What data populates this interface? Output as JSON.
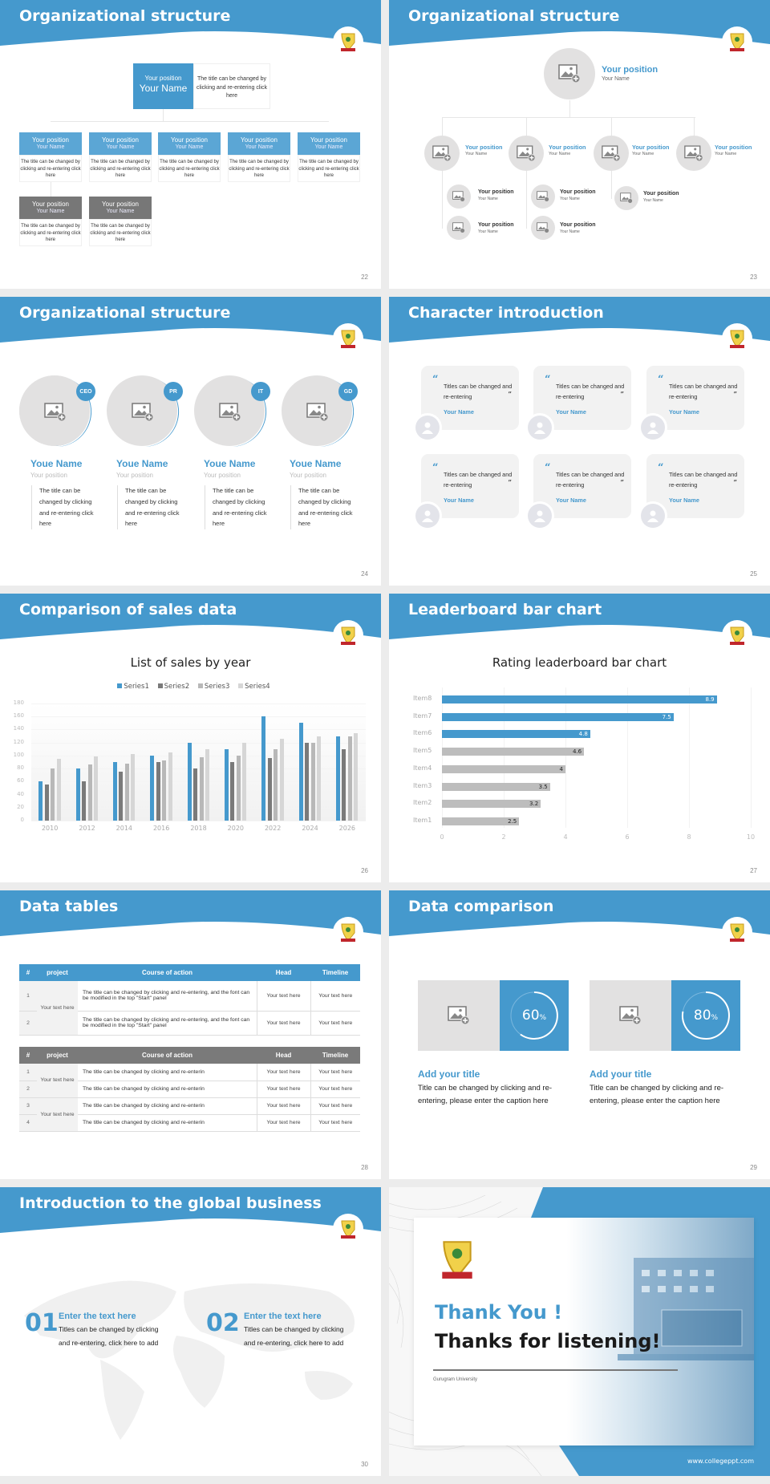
{
  "theme": {
    "accent": "#4599cd",
    "gray_dark": "#777777",
    "gray_light": "#e2e1e1",
    "background": "#ececec"
  },
  "slides": {
    "s22": {
      "title": "Organizational structure",
      "page": "22",
      "top": {
        "position": "Your position",
        "name": "Your Name",
        "desc": "The title can be changed by clicking and re-entering click here"
      },
      "cards": [
        {
          "position": "Your position",
          "name": "Your Name",
          "desc": "The title can be changed by clicking and re-entering click here",
          "style": "blue"
        },
        {
          "position": "Your position",
          "name": "Your Name",
          "desc": "The title can be changed by clicking and re-entering click here",
          "style": "blue"
        },
        {
          "position": "Your position",
          "name": "Your Name",
          "desc": "The title can be changed by clicking and re-entering click here",
          "style": "blue"
        },
        {
          "position": "Your position",
          "name": "Your Name",
          "desc": "The title can be changed by clicking and re-entering click here",
          "style": "blue"
        },
        {
          "position": "Your position",
          "name": "Your Name",
          "desc": "The title can be changed by clicking and re-entering click here",
          "style": "blue"
        },
        {
          "position": "Your position",
          "name": "Your Name",
          "desc": "The title can be changed by clicking and re-entering click here",
          "style": "gray"
        },
        {
          "position": "Your position",
          "name": "Your Name",
          "desc": "The title can be changed by clicking and re-entering click here",
          "style": "gray"
        }
      ]
    },
    "s23": {
      "title": "Organizational structure",
      "page": "23",
      "top": {
        "position": "Your position",
        "name": "Your Name"
      },
      "level1": [
        {
          "position": "Your position",
          "name": "Your Name"
        },
        {
          "position": "Your position",
          "name": "Your Name"
        },
        {
          "position": "Your position",
          "name": "Your Name"
        },
        {
          "position": "Your position",
          "name": "Your Name"
        }
      ],
      "level2": [
        {
          "position": "Your position",
          "name": "Your Name"
        },
        {
          "position": "Your position",
          "name": "Your Name"
        },
        {
          "position": "Your position",
          "name": "Your Name"
        },
        {
          "position": "Your position",
          "name": "Your Name"
        },
        {
          "position": "Your position",
          "name": "Your Name"
        }
      ]
    },
    "s24": {
      "title": "Organizational structure",
      "page": "24",
      "people": [
        {
          "badge": "CEO",
          "name": "Youe Name",
          "position": "Your position",
          "desc": "The title can be changed by clicking and re-entering click here"
        },
        {
          "badge": "PR",
          "name": "Youe Name",
          "position": "Your position",
          "desc": "The title can be changed by clicking and re-entering click here"
        },
        {
          "badge": "IT",
          "name": "Youe Name",
          "position": "Your position",
          "desc": "The title can be changed by clicking and re-entering click here"
        },
        {
          "badge": "GD",
          "name": "Youe Name",
          "position": "Your position",
          "desc": "The title can be changed by clicking and re-entering click here"
        }
      ]
    },
    "s25": {
      "title": "Character introduction",
      "page": "25",
      "quotes": [
        {
          "text": "Titles can be changed and re-entering",
          "name": "Your Name"
        },
        {
          "text": "Titles can be changed and re-entering",
          "name": "Your Name"
        },
        {
          "text": "Titles can be changed and re-entering",
          "name": "Your Name"
        },
        {
          "text": "Titles can be changed and re-entering",
          "name": "Your Name"
        },
        {
          "text": "Titles can be changed and re-entering",
          "name": "Your Name"
        },
        {
          "text": "Titles can be changed and re-entering",
          "name": "Your Name"
        }
      ],
      "open_quote": "“",
      "close_quote": "”"
    },
    "s26": {
      "title": "Comparison of sales data",
      "page": "26"
    },
    "s27": {
      "title": "Leaderboard bar chart",
      "page": "27"
    },
    "s28": {
      "title": "Data tables",
      "page": "28",
      "headers": [
        "#",
        "project",
        "Course of action",
        "Head",
        "Timeline"
      ],
      "table1": {
        "project_groups": [
          "Your text here"
        ],
        "rows": [
          {
            "num": "1",
            "action": "The title can be changed by clicking and re-entering, and the font can be modified in the top \"Start\" panel",
            "head": "Your text here",
            "timeline": "Your text here"
          },
          {
            "num": "2",
            "action": "The title can be changed by clicking and re-entering, and the font can be modified in the top \"Start\" panel",
            "head": "Your text here",
            "timeline": "Your text here"
          }
        ]
      },
      "table2": {
        "project_groups": [
          "Your text here",
          "Your text here"
        ],
        "rows": [
          {
            "num": "1",
            "action": "The title can be changed by clicking and re-enterin",
            "head": "Your text here",
            "timeline": "Your text here"
          },
          {
            "num": "2",
            "action": "The title can be changed by clicking and re-enterin",
            "head": "Your text here",
            "timeline": "Your text here"
          },
          {
            "num": "3",
            "action": "The title can be changed by clicking and re-enterin",
            "head": "Your text here",
            "timeline": "Your text here"
          },
          {
            "num": "4",
            "action": "The title can be changed by clicking and re-enterin",
            "head": "Your text here",
            "timeline": "Your text here"
          }
        ]
      }
    },
    "s29": {
      "title": "Data comparison",
      "page": "29",
      "items": [
        {
          "percent": "60",
          "unit": "%",
          "value": 60,
          "heading": "Add your title",
          "text": "Title can be changed by clicking and re-entering, please enter the caption here"
        },
        {
          "percent": "80",
          "unit": "%",
          "value": 80,
          "heading": "Add your title",
          "text": "Title can be changed by clicking and re-entering, please enter the caption here"
        }
      ]
    },
    "s30": {
      "title": "Introduction to the global business",
      "page": "30",
      "items": [
        {
          "num": "01",
          "heading": "Enter the text here",
          "text": "Titles can be changed by clicking and re-entering, click here to add"
        },
        {
          "num": "02",
          "heading": "Enter the text here",
          "text": "Titles can be changed by clicking and re-entering, click here to add"
        }
      ]
    },
    "s31": {
      "line1": "Thank You !",
      "line2": "Thanks for listening!",
      "university": "Gurugram University",
      "website": "www.collegeppt.com"
    }
  },
  "chart_data": [
    {
      "type": "bar",
      "title": "List of sales by year",
      "categories": [
        "2010",
        "2012",
        "2014",
        "2016",
        "2018",
        "2020",
        "2022",
        "2024",
        "2026"
      ],
      "series": [
        {
          "name": "Series1",
          "color": "#4599cd",
          "values": [
            60,
            80,
            90,
            100,
            120,
            110,
            160,
            150,
            130
          ]
        },
        {
          "name": "Series2",
          "color": "#7a7a7a",
          "values": [
            55,
            60,
            75,
            90,
            80,
            90,
            96,
            120,
            110
          ]
        },
        {
          "name": "Series3",
          "color": "#b8b8b8",
          "values": [
            80,
            86,
            88,
            92,
            98,
            100,
            110,
            120,
            130
          ]
        },
        {
          "name": "Series4",
          "color": "#d6d6d6",
          "values": [
            95,
            99,
            102,
            105,
            110,
            120,
            126,
            130,
            135
          ]
        }
      ],
      "xlabel": "",
      "ylabel": "",
      "ylim": [
        0,
        180
      ],
      "yticks": [
        "0",
        "20",
        "40",
        "60",
        "80",
        "100",
        "120",
        "140",
        "160",
        "180"
      ],
      "legend_position": "top",
      "grid": true
    },
    {
      "type": "bar",
      "orientation": "horizontal",
      "title": "Rating leaderboard bar chart",
      "categories": [
        "Item8",
        "Item7",
        "Item6",
        "Item5",
        "Item4",
        "Item3",
        "Item2",
        "Item1"
      ],
      "values": [
        8.9,
        7.5,
        4.8,
        4.6,
        4,
        3.5,
        3.2,
        2.5
      ],
      "labels": [
        "8.9",
        "7.5",
        "4.8",
        "4.6",
        "4",
        "3.5",
        "3.2",
        "2.5"
      ],
      "highlight_color": "#4599cd",
      "base_color": "#bdbdbd",
      "highlighted_count": 3,
      "xlim": [
        0,
        10
      ],
      "xticks": [
        "0",
        "2",
        "4",
        "6",
        "8",
        "10"
      ],
      "grid": true
    }
  ]
}
